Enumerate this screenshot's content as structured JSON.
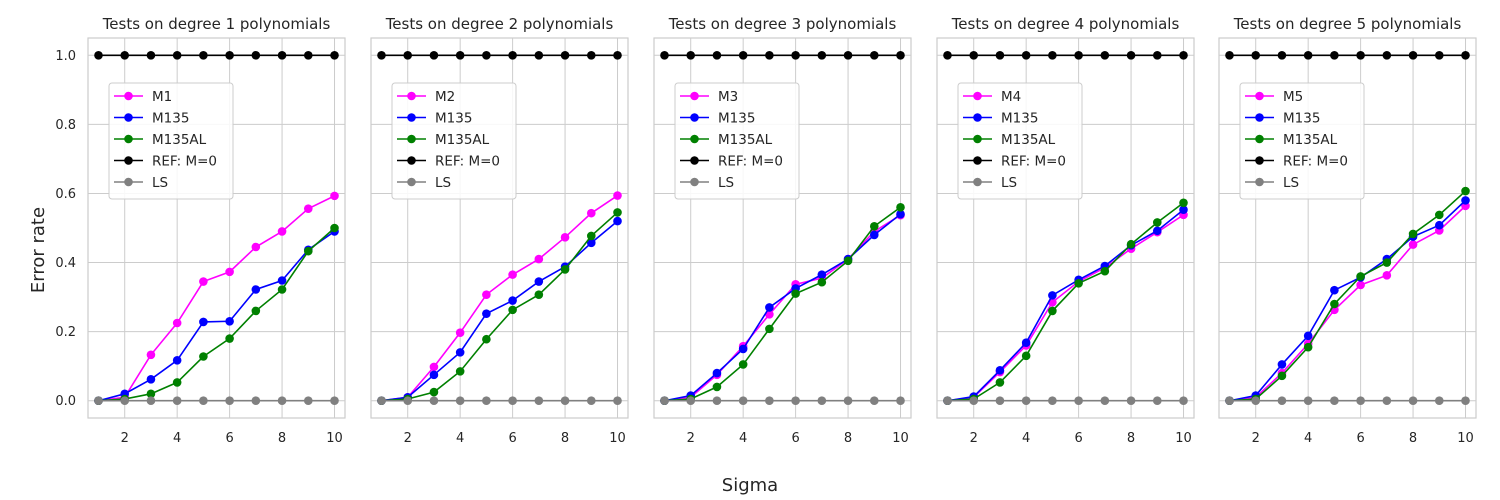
{
  "figure": {
    "ylabel": "Error rate",
    "xlabel": "Sigma"
  },
  "chart_data": [
    {
      "type": "line",
      "title": "Tests on degree 1 polynomials",
      "xlabel": "Sigma",
      "ylabel": "Error rate",
      "xlim": [
        0.6,
        10.4
      ],
      "ylim": [
        -0.05,
        1.05
      ],
      "xticks": [
        2,
        4,
        6,
        8,
        10
      ],
      "yticks": [
        0.0,
        0.2,
        0.4,
        0.6,
        0.8,
        1.0
      ],
      "x": [
        1,
        2,
        3,
        4,
        5,
        6,
        7,
        8,
        9,
        10
      ],
      "legend_position": "upper-left",
      "series": [
        {
          "name": "M1",
          "color": "#ff00ff",
          "values": [
            0,
            0.01,
            0.133,
            0.225,
            0.345,
            0.373,
            0.445,
            0.49,
            0.556,
            0.593
          ]
        },
        {
          "name": "M135",
          "color": "#0000ff",
          "values": [
            0,
            0.02,
            0.062,
            0.117,
            0.228,
            0.23,
            0.322,
            0.348,
            0.437,
            0.49
          ]
        },
        {
          "name": "M135AL",
          "color": "#008000",
          "values": [
            0,
            0.005,
            0.02,
            0.053,
            0.128,
            0.18,
            0.26,
            0.322,
            0.433,
            0.5
          ]
        },
        {
          "name": "REF: M=0",
          "color": "#000000",
          "values": [
            1,
            1,
            1,
            1,
            1,
            1,
            1,
            1,
            1,
            1
          ]
        },
        {
          "name": "LS",
          "color": "#808080",
          "values": [
            0,
            0,
            0,
            0,
            0,
            0,
            0,
            0,
            0,
            0
          ]
        }
      ]
    },
    {
      "type": "line",
      "title": "Tests on degree 2 polynomials",
      "xlabel": "Sigma",
      "ylabel": "Error rate",
      "xlim": [
        0.6,
        10.4
      ],
      "ylim": [
        -0.05,
        1.05
      ],
      "xticks": [
        2,
        4,
        6,
        8,
        10
      ],
      "yticks": [
        0.0,
        0.2,
        0.4,
        0.6,
        0.8,
        1.0
      ],
      "x": [
        1,
        2,
        3,
        4,
        5,
        6,
        7,
        8,
        9,
        10
      ],
      "legend_position": "upper-left",
      "series": [
        {
          "name": "M2",
          "color": "#ff00ff",
          "values": [
            0,
            0.01,
            0.098,
            0.197,
            0.307,
            0.365,
            0.41,
            0.473,
            0.543,
            0.594
          ]
        },
        {
          "name": "M135",
          "color": "#0000ff",
          "values": [
            0,
            0.01,
            0.075,
            0.14,
            0.252,
            0.29,
            0.345,
            0.388,
            0.457,
            0.52
          ]
        },
        {
          "name": "M135AL",
          "color": "#008000",
          "values": [
            0,
            0.005,
            0.025,
            0.085,
            0.178,
            0.263,
            0.307,
            0.38,
            0.477,
            0.545
          ]
        },
        {
          "name": "REF: M=0",
          "color": "#000000",
          "values": [
            1,
            1,
            1,
            1,
            1,
            1,
            1,
            1,
            1,
            1
          ]
        },
        {
          "name": "LS",
          "color": "#808080",
          "values": [
            0,
            0,
            0,
            0,
            0,
            0,
            0,
            0,
            0,
            0
          ]
        }
      ]
    },
    {
      "type": "line",
      "title": "Tests on degree 3 polynomials",
      "xlabel": "Sigma",
      "ylabel": "Error rate",
      "xlim": [
        0.6,
        10.4
      ],
      "ylim": [
        -0.05,
        1.05
      ],
      "xticks": [
        2,
        4,
        6,
        8,
        10
      ],
      "yticks": [
        0.0,
        0.2,
        0.4,
        0.6,
        0.8,
        1.0
      ],
      "x": [
        1,
        2,
        3,
        4,
        5,
        6,
        7,
        8,
        9,
        10
      ],
      "legend_position": "upper-left",
      "series": [
        {
          "name": "M3",
          "color": "#ff00ff",
          "values": [
            0,
            0.01,
            0.075,
            0.158,
            0.25,
            0.337,
            0.355,
            0.41,
            0.49,
            0.537
          ]
        },
        {
          "name": "M135",
          "color": "#0000ff",
          "values": [
            0,
            0.015,
            0.08,
            0.15,
            0.27,
            0.325,
            0.365,
            0.41,
            0.48,
            0.54
          ]
        },
        {
          "name": "M135AL",
          "color": "#008000",
          "values": [
            0,
            0.005,
            0.04,
            0.105,
            0.208,
            0.31,
            0.343,
            0.405,
            0.505,
            0.56
          ]
        },
        {
          "name": "REF: M=0",
          "color": "#000000",
          "values": [
            1,
            1,
            1,
            1,
            1,
            1,
            1,
            1,
            1,
            1
          ]
        },
        {
          "name": "LS",
          "color": "#808080",
          "values": [
            0,
            0,
            0,
            0,
            0,
            0,
            0,
            0,
            0,
            0
          ]
        }
      ]
    },
    {
      "type": "line",
      "title": "Tests on degree 4 polynomials",
      "xlabel": "Sigma",
      "ylabel": "Error rate",
      "xlim": [
        0.6,
        10.4
      ],
      "ylim": [
        -0.05,
        1.05
      ],
      "xticks": [
        2,
        4,
        6,
        8,
        10
      ],
      "yticks": [
        0.0,
        0.2,
        0.4,
        0.6,
        0.8,
        1.0
      ],
      "x": [
        1,
        2,
        3,
        4,
        5,
        6,
        7,
        8,
        9,
        10
      ],
      "legend_position": "upper-left",
      "series": [
        {
          "name": "M4",
          "color": "#ff00ff",
          "values": [
            0,
            0.01,
            0.083,
            0.16,
            0.285,
            0.345,
            0.385,
            0.44,
            0.488,
            0.538
          ]
        },
        {
          "name": "M135",
          "color": "#0000ff",
          "values": [
            0,
            0.012,
            0.088,
            0.168,
            0.305,
            0.35,
            0.39,
            0.45,
            0.492,
            0.553
          ]
        },
        {
          "name": "M135AL",
          "color": "#008000",
          "values": [
            0,
            0.005,
            0.053,
            0.13,
            0.26,
            0.34,
            0.375,
            0.453,
            0.516,
            0.573
          ]
        },
        {
          "name": "REF: M=0",
          "color": "#000000",
          "values": [
            1,
            1,
            1,
            1,
            1,
            1,
            1,
            1,
            1,
            1
          ]
        },
        {
          "name": "LS",
          "color": "#808080",
          "values": [
            0,
            0,
            0,
            0,
            0,
            0,
            0,
            0,
            0,
            0
          ]
        }
      ]
    },
    {
      "type": "line",
      "title": "Tests on degree 5 polynomials",
      "xlabel": "Sigma",
      "ylabel": "Error rate",
      "xlim": [
        0.6,
        10.4
      ],
      "ylim": [
        -0.05,
        1.05
      ],
      "xticks": [
        2,
        4,
        6,
        8,
        10
      ],
      "yticks": [
        0.0,
        0.2,
        0.4,
        0.6,
        0.8,
        1.0
      ],
      "x": [
        1,
        2,
        3,
        4,
        5,
        6,
        7,
        8,
        9,
        10
      ],
      "legend_position": "upper-left",
      "series": [
        {
          "name": "M5",
          "color": "#ff00ff",
          "values": [
            0,
            0.01,
            0.08,
            0.165,
            0.263,
            0.335,
            0.363,
            0.452,
            0.493,
            0.564
          ]
        },
        {
          "name": "M135",
          "color": "#0000ff",
          "values": [
            0,
            0.015,
            0.105,
            0.188,
            0.32,
            0.357,
            0.41,
            0.475,
            0.508,
            0.58
          ]
        },
        {
          "name": "M135AL",
          "color": "#008000",
          "values": [
            0,
            0.005,
            0.072,
            0.155,
            0.28,
            0.36,
            0.4,
            0.483,
            0.538,
            0.607
          ]
        },
        {
          "name": "REF: M=0",
          "color": "#000000",
          "values": [
            1,
            1,
            1,
            1,
            1,
            1,
            1,
            1,
            1,
            1
          ]
        },
        {
          "name": "LS",
          "color": "#808080",
          "values": [
            0,
            0,
            0,
            0,
            0,
            0,
            0,
            0,
            0,
            0
          ]
        }
      ]
    }
  ]
}
